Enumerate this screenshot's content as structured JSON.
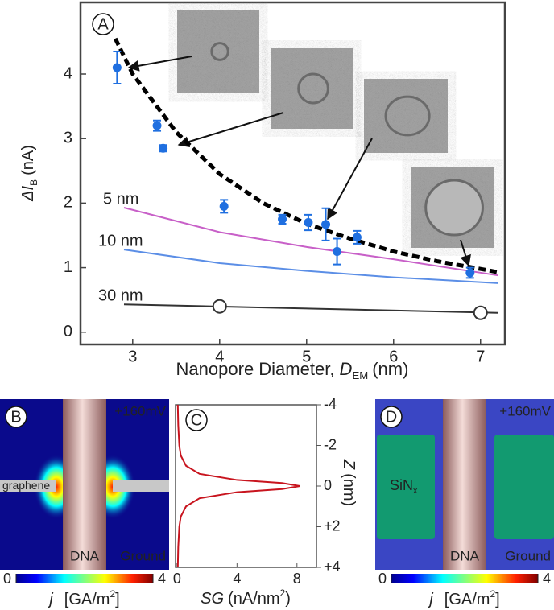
{
  "chart_data": [
    {
      "type": "scatter",
      "panel_label": "A",
      "x_label": [
        "Nanopore Diameter, ",
        "D",
        "EM",
        "(nm)"
      ],
      "y_label": [
        "ΔI",
        "B",
        "(nA)"
      ],
      "xlim": [
        2.4,
        7.28
      ],
      "ylim": [
        -0.19,
        5.11
      ],
      "xticks": [
        3,
        4,
        5,
        6,
        7
      ],
      "yticks": [
        0,
        1,
        2,
        3,
        4
      ],
      "points": {
        "color": "#1f6fe0",
        "x": [
          2.82,
          3.28,
          3.35,
          4.05,
          4.72,
          5.02,
          5.22,
          5.35,
          5.58,
          6.88
        ],
        "values": [
          4.1,
          3.2,
          2.85,
          1.95,
          1.75,
          1.7,
          1.67,
          1.25,
          1.47,
          0.92
        ],
        "errors": [
          0.25,
          0.08,
          0.05,
          0.1,
          0.07,
          0.12,
          0.25,
          0.2,
          0.1,
          0.08
        ]
      },
      "fit": {
        "color": "#000000",
        "x": [
          2.8,
          3,
          3.5,
          4,
          4.5,
          5,
          5.5,
          6,
          6.5,
          7,
          7.2
        ],
        "values": [
          4.55,
          4.0,
          3.1,
          2.45,
          2.0,
          1.68,
          1.45,
          1.25,
          1.1,
          0.98,
          0.93
        ]
      },
      "series": [
        {
          "name": "5 nm",
          "color": "#c860c8",
          "x": [
            2.9,
            4,
            5,
            6,
            7.2
          ],
          "values": [
            1.93,
            1.55,
            1.32,
            1.13,
            0.88
          ]
        },
        {
          "name": "10 nm",
          "color": "#5b8ee6",
          "x": [
            2.9,
            4,
            5,
            6,
            7.2
          ],
          "values": [
            1.28,
            1.07,
            0.95,
            0.85,
            0.76
          ]
        },
        {
          "name": "30 nm",
          "color": "#333333",
          "x": [
            2.9,
            7.2
          ],
          "values": [
            0.43,
            0.3
          ]
        }
      ],
      "open_markers": {
        "color": "#333333",
        "x": [
          4,
          7
        ],
        "values": [
          0.4,
          0.3
        ]
      }
    },
    {
      "type": "heatmap",
      "panel_label": "B",
      "annotations": {
        "voltage": "+160mV",
        "material": [
          "graphene"
        ],
        "dna": "DNA",
        "ground": "Ground"
      },
      "clim": [
        0,
        4
      ],
      "colorbar_ticks": [
        0,
        4
      ],
      "colorbar_label": [
        "j",
        "[GA/m",
        "2",
        "]"
      ]
    },
    {
      "type": "line",
      "panel_label": "C",
      "x_label": [
        "SG",
        "(nA/nm",
        "2",
        ")"
      ],
      "y_label": [
        "Z",
        "(nm)"
      ],
      "xlim": [
        -0.1,
        9.3
      ],
      "ylim": [
        -4,
        4
      ],
      "xticks": [
        0,
        4,
        8
      ],
      "yticks": [
        -4,
        -2,
        0,
        {
          "value": 2,
          "label": "+2"
        },
        {
          "value": 4,
          "label": "+4"
        }
      ],
      "series": [
        {
          "color": "#c8141e",
          "x": [
            0.05,
            0.08,
            0.15,
            0.25,
            0.6,
            1.5,
            4,
            7,
            8.2,
            7,
            4,
            1.5,
            0.6,
            0.25,
            0.15,
            0.08,
            0.05
          ],
          "values": [
            -4,
            -3,
            -2,
            -1.5,
            -1,
            -0.6,
            -0.3,
            -0.15,
            0,
            0.15,
            0.3,
            0.6,
            1,
            1.5,
            2,
            3,
            4
          ]
        }
      ]
    },
    {
      "type": "heatmap",
      "panel_label": "D",
      "annotations": {
        "voltage": "+160mV",
        "material": [
          "SiN",
          "x"
        ],
        "dna": "DNA",
        "ground": "Ground"
      },
      "clim": [
        0,
        4
      ],
      "colorbar_ticks": [
        0,
        4
      ],
      "colorbar_label": [
        "j",
        "[GA/m",
        "2",
        "]"
      ]
    }
  ]
}
